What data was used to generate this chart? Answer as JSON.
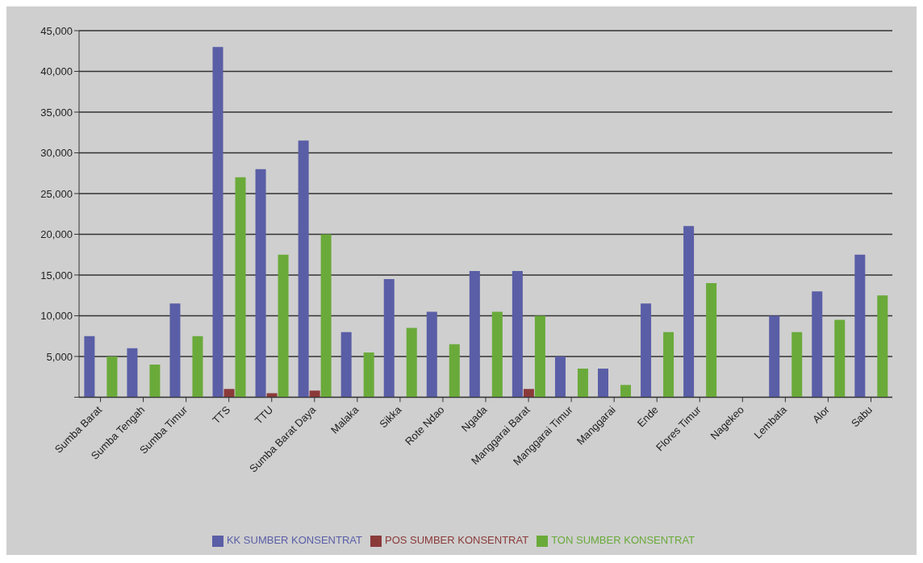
{
  "chart_data": {
    "type": "bar",
    "categories": [
      "Sumba Barat",
      "Sumba Tengah",
      "Sumba Timur",
      "TTS",
      "TTU",
      "Sumba Barat Daya",
      "Malaka",
      "Sikka",
      "Rote Ndao",
      "Ngada",
      "Manggarai Barat",
      "Manggarai Timur",
      "Manggarai",
      "Ende",
      "Flores Timur",
      "Nagekeo",
      "Lembata",
      "Alor",
      "Sabu"
    ],
    "series": [
      {
        "name": "KK SUMBER KONSENTRAT",
        "color": "#5a5ea6",
        "values": [
          7500,
          6000,
          11500,
          43000,
          28000,
          31500,
          8000,
          14500,
          10500,
          15500,
          15500,
          5000,
          3500,
          11500,
          21000,
          null,
          10000,
          13000,
          17500
        ]
      },
      {
        "name": "POS SUMBER KONSENTRAT",
        "color": "#8b3a3a",
        "values": [
          null,
          null,
          null,
          1000,
          500,
          800,
          null,
          null,
          null,
          null,
          1000,
          null,
          null,
          null,
          null,
          null,
          null,
          null,
          null
        ]
      },
      {
        "name": "TON SUMBER KONSENTRAT",
        "color": "#6aaa3a",
        "values": [
          5000,
          4000,
          7500,
          27000,
          17500,
          20000,
          5500,
          8500,
          6500,
          10500,
          10000,
          3500,
          1500,
          8000,
          14000,
          null,
          8000,
          9500,
          12500
        ]
      }
    ],
    "ylim": [
      0,
      45000
    ],
    "yticks": [
      {
        "value": 0,
        "label": null
      },
      {
        "value": 5000,
        "label": "5,000"
      },
      {
        "value": 10000,
        "label": "10,000"
      },
      {
        "value": 15000,
        "label": "15,000"
      },
      {
        "value": 20000,
        "label": "20,000"
      },
      {
        "value": 25000,
        "label": "25,000"
      },
      {
        "value": 30000,
        "label": "30,000"
      },
      {
        "value": 35000,
        "label": "35,000"
      },
      {
        "value": 40000,
        "label": "40,000"
      },
      {
        "value": 45000,
        "label": "45,000"
      }
    ],
    "grid": "y",
    "legend": "bottom"
  }
}
